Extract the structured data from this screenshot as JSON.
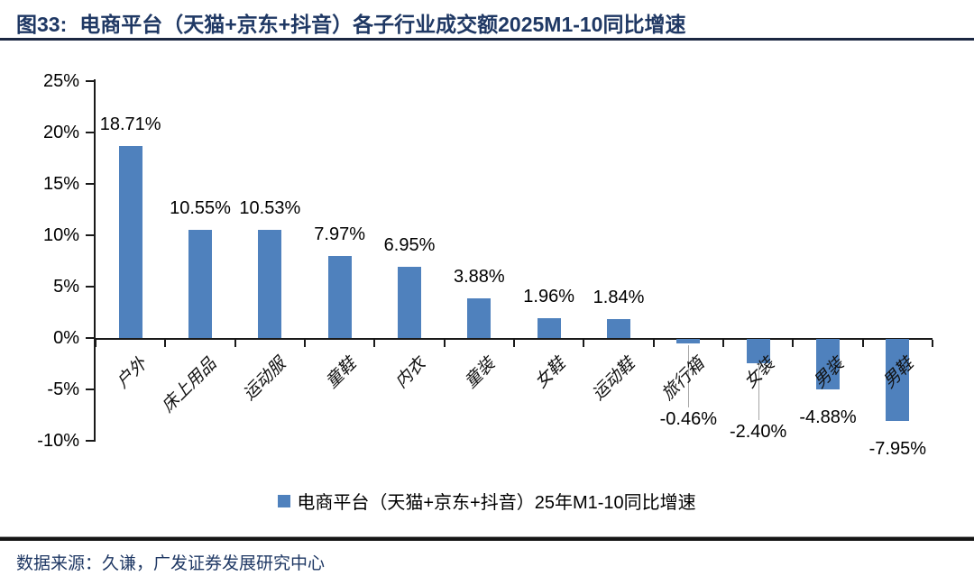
{
  "figure": {
    "label": "图33:",
    "title": "电商平台（天猫+京东+抖音）各子行业成交额2025M1-10同比增速"
  },
  "chart_data": {
    "type": "bar",
    "title": "电商平台（天猫+京东+抖音）各子行业成交额2025M1-10同比增速",
    "categories": [
      "户外",
      "床上用品",
      "运动服",
      "童鞋",
      "内衣",
      "童装",
      "女鞋",
      "运动鞋",
      "旅行箱",
      "女装",
      "男装",
      "男鞋"
    ],
    "values": [
      18.71,
      10.55,
      10.53,
      7.97,
      6.95,
      3.88,
      1.96,
      1.84,
      -0.46,
      -2.4,
      -4.88,
      -7.95
    ],
    "value_labels": [
      "18.71%",
      "10.55%",
      "10.53%",
      "7.97%",
      "6.95%",
      "3.88%",
      "1.96%",
      "1.84%",
      "-0.46%",
      "-2.40%",
      "-4.88%",
      "-7.95%"
    ],
    "y_ticks": [
      "25%",
      "20%",
      "15%",
      "10%",
      "5%",
      "0%",
      "-5%",
      "-10%"
    ],
    "y_tick_values": [
      25,
      20,
      15,
      10,
      5,
      0,
      -5,
      -10
    ],
    "ylim": [
      -10,
      25
    ],
    "grid": false,
    "bar_color": "#4F81BD",
    "leader_line_color": "#A6A6A6",
    "legend": {
      "label": "电商平台（天猫+京东+抖音）25年M1-10同比增速",
      "position": "bottom",
      "marker_color": "#4F81BD"
    }
  },
  "footer": {
    "source": "数据来源：久谦，广发证券发展研究中心"
  }
}
